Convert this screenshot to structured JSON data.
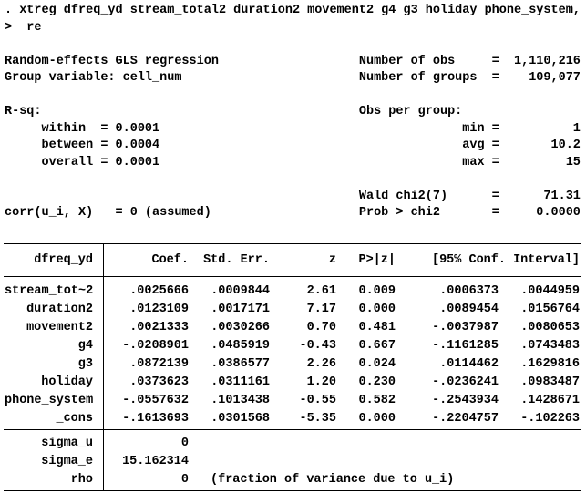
{
  "output": {
    "lines": [
      ". xtreg dfreq_yd stream_total2 duration2 movement2 g4 g3 holiday phone_system,",
      ">  re",
      "",
      "Random-effects GLS regression                   Number of obs     =  1,110,216",
      "Group variable: cell_num                        Number of groups  =    109,077",
      "",
      "R-sq:                                           Obs per group:",
      "     within  = 0.0001                                         min =          1",
      "     between = 0.0004                                         avg =       10.2",
      "     overall = 0.0001                                         max =         15",
      "",
      "                                                Wald chi2(7)      =      71.31",
      "corr(u_i, X)   = 0 (assumed)                    Prob > chi2       =     0.0000"
    ]
  },
  "stats": {
    "model_title": "Random-effects GLS regression",
    "group_variable": "cell_num",
    "number_of_obs": "1,110,216",
    "number_of_groups": "109,077",
    "r_sq_within": "0.0001",
    "r_sq_between": "0.0004",
    "r_sq_overall": "0.0001",
    "obs_per_group_min": "1",
    "obs_per_group_avg": "10.2",
    "obs_per_group_max": "15",
    "wald_chi2_label": "Wald chi2(7)",
    "wald_chi2": "71.31",
    "prob_chi2": "0.0000",
    "corr_assumption": "corr(u_i, X)   = 0 (assumed)"
  },
  "table": {
    "header": {
      "depvar": "dfreq_yd",
      "coef": "Coef.",
      "std_err": "Std. Err.",
      "z": "z",
      "p": "P>|z|",
      "ci": "[95% Conf. Interval]"
    },
    "rows": [
      {
        "var": "stream_tot~2",
        "coef": ".0025666",
        "se": ".0009844",
        "z": "2.61",
        "p": "0.009",
        "lo": ".0006373",
        "hi": ".0044959"
      },
      {
        "var": "duration2",
        "coef": ".0123109",
        "se": ".0017171",
        "z": "7.17",
        "p": "0.000",
        "lo": ".0089454",
        "hi": ".0156764"
      },
      {
        "var": "movement2",
        "coef": ".0021333",
        "se": ".0030266",
        "z": "0.70",
        "p": "0.481",
        "lo": "-.0037987",
        "hi": ".0080653"
      },
      {
        "var": "g4",
        "coef": "-.0208901",
        "se": ".0485919",
        "z": "-0.43",
        "p": "0.667",
        "lo": "-.1161285",
        "hi": ".0743483"
      },
      {
        "var": "g3",
        "coef": ".0872139",
        "se": ".0386577",
        "z": "2.26",
        "p": "0.024",
        "lo": ".0114462",
        "hi": ".1629816"
      },
      {
        "var": "holiday",
        "coef": ".0373623",
        "se": ".0311161",
        "z": "1.20",
        "p": "0.230",
        "lo": "-.0236241",
        "hi": ".0983487"
      },
      {
        "var": "phone_system",
        "coef": "-.0557632",
        "se": ".1013438",
        "z": "-0.55",
        "p": "0.582",
        "lo": "-.2543934",
        "hi": ".1428671"
      },
      {
        "var": "_cons",
        "coef": "-.1613693",
        "se": ".0301568",
        "z": "-5.35",
        "p": "0.000",
        "lo": "-.2204757",
        "hi": "-.102263"
      }
    ],
    "footer": [
      {
        "var": "sigma_u",
        "value": "0",
        "note": ""
      },
      {
        "var": "sigma_e",
        "value": "15.162314",
        "note": ""
      },
      {
        "var": "rho",
        "value": "0",
        "note": "(fraction of variance due to u_i)"
      }
    ]
  },
  "colors": {
    "background": "#ffffff",
    "text": "#000000",
    "rule": "#000000"
  }
}
